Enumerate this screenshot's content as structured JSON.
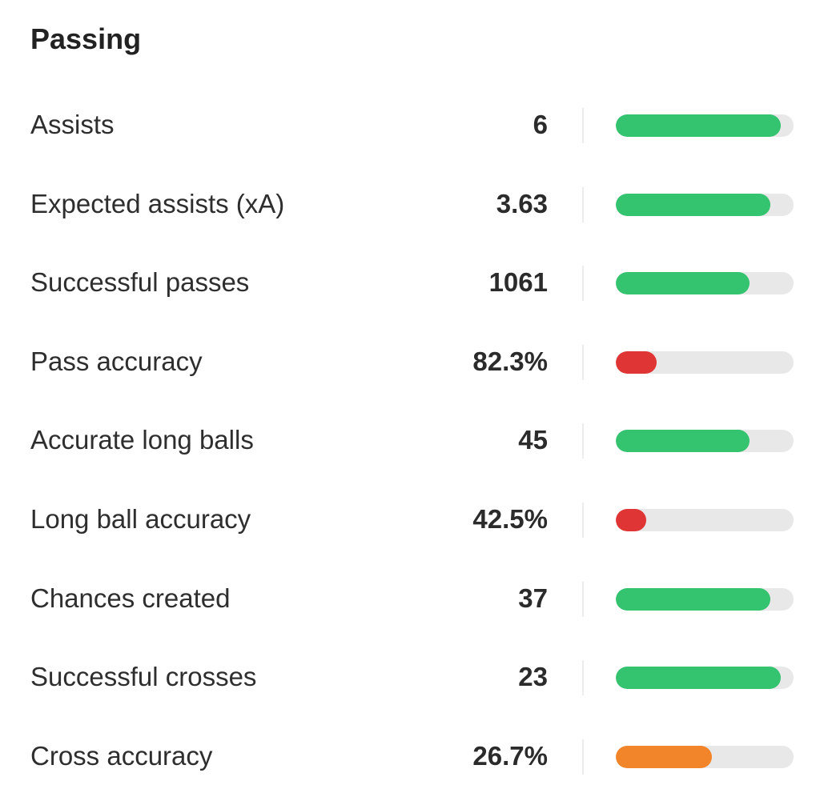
{
  "section": {
    "title": "Passing"
  },
  "colors": {
    "green": "#34c36f",
    "red": "#e03535",
    "orange": "#f2842a",
    "track": "#e8e8e8"
  },
  "stats": [
    {
      "label": "Assists",
      "value": "6",
      "level": 0.93,
      "color": "green"
    },
    {
      "label": "Expected assists (xA)",
      "value": "3.63",
      "level": 0.87,
      "color": "green"
    },
    {
      "label": "Successful passes",
      "value": "1061",
      "level": 0.75,
      "color": "green"
    },
    {
      "label": "Pass accuracy",
      "value": "82.3%",
      "level": 0.23,
      "color": "red"
    },
    {
      "label": "Accurate long balls",
      "value": "45",
      "level": 0.75,
      "color": "green"
    },
    {
      "label": "Long ball accuracy",
      "value": "42.5%",
      "level": 0.17,
      "color": "red"
    },
    {
      "label": "Chances created",
      "value": "37",
      "level": 0.87,
      "color": "green"
    },
    {
      "label": "Successful crosses",
      "value": "23",
      "level": 0.93,
      "color": "green"
    },
    {
      "label": "Cross accuracy",
      "value": "26.7%",
      "level": 0.54,
      "color": "orange"
    }
  ]
}
